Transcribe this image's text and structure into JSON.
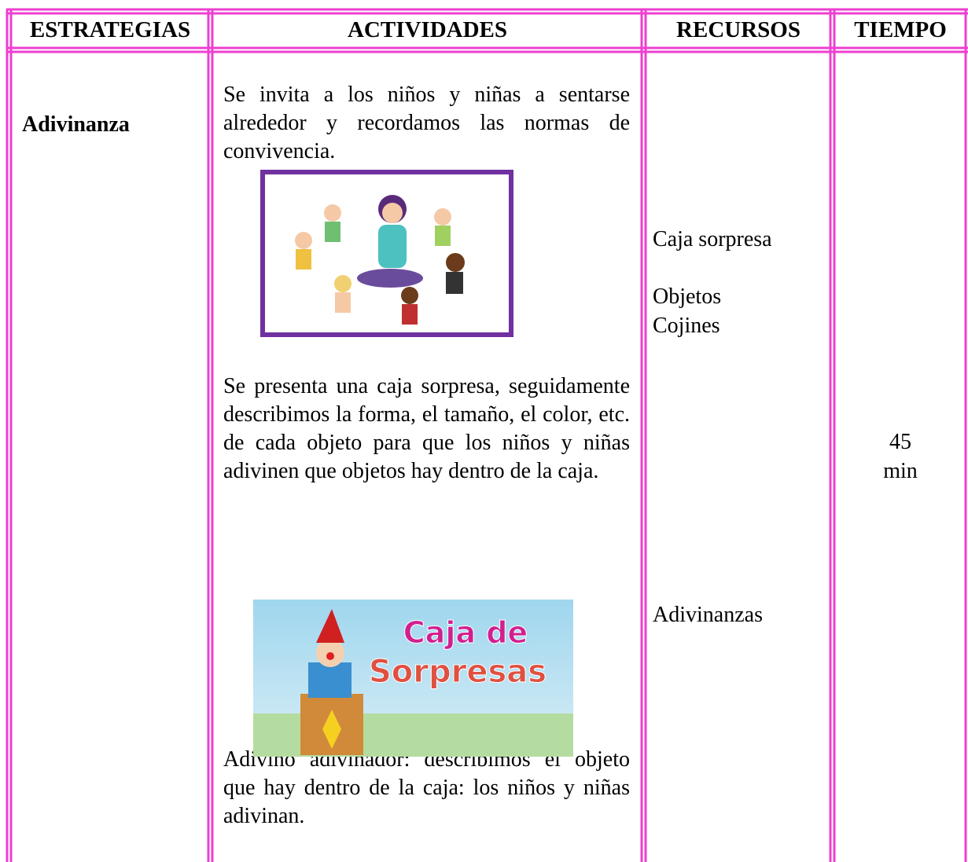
{
  "table": {
    "headers": [
      "ESTRATEGIAS",
      "ACTIVIDADES",
      "RECURSOS",
      "TIEMPO"
    ],
    "strategy": "Adivinanza",
    "activities": [
      "Se invita a los niños y niñas a sentarse alrededor y recordamos las normas de convivencia.",
      "Se presenta una caja sorpresa, seguidamente describimos la forma, el tamaño, el color, etc. de cada objeto para que los niños y niñas adivinen que objetos hay dentro de la caja.",
      "Adivino adivinador: describimos el objeto que hay dentro de la caja: los niños y niñas adivinan."
    ],
    "image_text": [
      "Caja de",
      "Sorpresas"
    ],
    "resources": [
      "Caja sorpresa",
      "Objetos",
      "Cojines",
      "Adivinanzas"
    ],
    "time": [
      "45",
      "min"
    ]
  }
}
